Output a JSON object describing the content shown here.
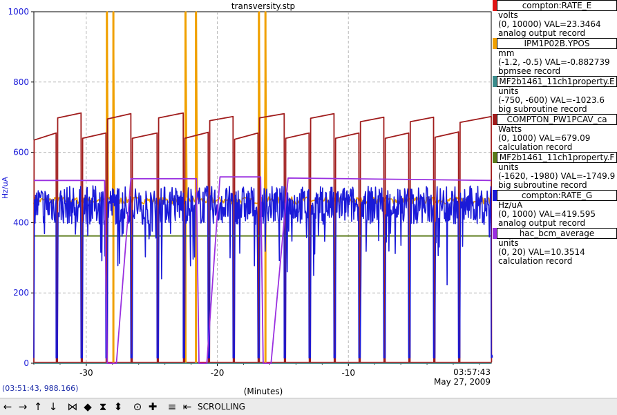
{
  "chart_data": {
    "type": "line",
    "title": "transversity.stp",
    "xlabel": "(Minutes)",
    "ylabel": "Hz/uA",
    "xlim": [
      -34,
      0.9
    ],
    "ylim": [
      0,
      1000
    ],
    "x_ticks": [
      -30,
      -20,
      -10
    ],
    "x_tick_labels": [
      "-30",
      "-20",
      "-10"
    ],
    "y_ticks": [
      0,
      200,
      400,
      600,
      800,
      1000
    ],
    "y_tick_labels": [
      "0",
      "200",
      "400",
      "600",
      "800",
      "1000"
    ],
    "grid": true,
    "time_label": "03:57:43",
    "date_label": "May 27, 2009",
    "series": [
      {
        "name": "compton:RATE_E",
        "color": "#e01515",
        "kind": "flat",
        "value": 2.3
      },
      {
        "name": "IPM1P02B.YPOS",
        "color": "#f0a000",
        "kind": "noise",
        "value": 463,
        "amp": 10,
        "spikes": [
          -28.4,
          -27.9,
          -22.4,
          -21.6,
          -16.8,
          -16.3
        ]
      },
      {
        "name": "MF2b1461_11ch1property.E",
        "color": "#3a8c8c",
        "kind": "flat",
        "value": 0
      },
      {
        "name": "COMPTON_PW1PCAV_ca",
        "color": "#a01c1c",
        "kind": "sawtooth",
        "cycles": [
          [
            -34,
            -32.3,
            635,
            655
          ],
          [
            -32.2,
            -30.4,
            698,
            712
          ],
          [
            -30.3,
            -28.5,
            640,
            655
          ],
          [
            -28.4,
            -26.6,
            695,
            710
          ],
          [
            -26.5,
            -24.6,
            640,
            655
          ],
          [
            -24.5,
            -22.6,
            698,
            712
          ],
          [
            -22.5,
            -20.7,
            640,
            657
          ],
          [
            -20.6,
            -18.8,
            690,
            702
          ],
          [
            -18.7,
            -16.9,
            637,
            655
          ],
          [
            -16.8,
            -14.9,
            698,
            710
          ],
          [
            -14.8,
            -13.0,
            640,
            655
          ],
          [
            -12.9,
            -11.1,
            697,
            710
          ],
          [
            -11.0,
            -9.2,
            640,
            655
          ],
          [
            -9.1,
            -7.3,
            687,
            700
          ],
          [
            -7.2,
            -5.4,
            640,
            655
          ],
          [
            -5.3,
            -3.5,
            687,
            700
          ],
          [
            -3.4,
            -1.6,
            643,
            658
          ],
          [
            -1.5,
            0.9,
            685,
            702
          ]
        ]
      },
      {
        "name": "MF2b1461_11ch1property.F",
        "color": "#5a7a1a",
        "kind": "flat",
        "value": 362
      },
      {
        "name": "compton:RATE_G",
        "color": "#1a1ad8",
        "kind": "sawtooth_noisy",
        "cycles": [
          [
            -34,
            -32.3
          ],
          [
            -32.2,
            -30.4
          ],
          [
            -30.3,
            -28.5
          ],
          [
            -28.4,
            -26.6
          ],
          [
            -26.5,
            -24.6
          ],
          [
            -24.5,
            -22.6
          ],
          [
            -22.5,
            -20.7
          ],
          [
            -20.6,
            -18.8
          ],
          [
            -18.7,
            -16.9
          ],
          [
            -16.8,
            -14.9
          ],
          [
            -14.8,
            -13.0
          ],
          [
            -12.9,
            -11.1
          ],
          [
            -11.0,
            -9.2
          ],
          [
            -9.1,
            -7.3
          ],
          [
            -7.2,
            -5.4
          ],
          [
            -5.3,
            -3.5
          ],
          [
            -3.4,
            -1.6
          ],
          [
            -1.5,
            0.9
          ]
        ],
        "high": 450,
        "low": 15
      },
      {
        "name": "hac_bcm_average",
        "color": "#9a30e0",
        "kind": "steps",
        "points": [
          [
            -34,
            520
          ],
          [
            -28.6,
            520
          ],
          [
            -28.4,
            0
          ],
          [
            -27.7,
            0
          ],
          [
            -26.6,
            525
          ],
          [
            -21.6,
            525
          ],
          [
            -21.4,
            0
          ],
          [
            -20.8,
            0
          ],
          [
            -19.8,
            530
          ],
          [
            -16.7,
            530
          ],
          [
            -16.5,
            0
          ],
          [
            -15.9,
            0
          ],
          [
            -14.6,
            527
          ],
          [
            0.9,
            520
          ]
        ]
      }
    ]
  },
  "legend": [
    {
      "name": "compton:RATE_E",
      "color": "#e01515",
      "units": "volts",
      "range": "(0, 10000) VAL=23.3464",
      "record": "analog output record"
    },
    {
      "name": "IPM1P02B.YPOS",
      "color": "#f0a000",
      "units": "mm",
      "range": "(-1.2, -0.5) VAL=-0.882739",
      "record": "bpmsee record"
    },
    {
      "name": "MF2b1461_11ch1property.E",
      "color": "#3a8c8c",
      "units": "units",
      "range": "(-750, -600)  VAL=-1023.6",
      "record": "big subroutine record"
    },
    {
      "name": "COMPTON_PW1PCAV_ca",
      "color": "#a01c1c",
      "units": "Watts",
      "range": "(0, 1000) VAL=679.09",
      "record": "calculation record"
    },
    {
      "name": "MF2b1461_11ch1property.F",
      "color": "#5a7a1a",
      "units": "units",
      "range": "(-1620, -1980)  VAL=-1749.9",
      "record": "big subroutine record"
    },
    {
      "name": "compton:RATE_G",
      "color": "#1a1ad8",
      "units": "Hz/uA",
      "range": "(0, 1000) VAL=419.595",
      "record": "analog output record"
    },
    {
      "name": "hac_bcm_average",
      "color": "#9a30e0",
      "units": "units",
      "range": "(0, 20) VAL=10.3514",
      "record": "calculation record"
    }
  ],
  "status": {
    "coords": "(03:51:43, 988.166)"
  },
  "toolbar": {
    "buttons": [
      "pan-left-icon",
      "pan-right-icon",
      "pan-up-icon",
      "pan-down-icon",
      "zoom-in-x-icon",
      "zoom-out-x-icon",
      "zoom-in-y-icon",
      "zoom-out-y-icon",
      "zoom-in-icon",
      "zoom-out-icon",
      "auto-scale-icon",
      "scroll-back-icon"
    ],
    "mode_label": "SCROLLING"
  }
}
